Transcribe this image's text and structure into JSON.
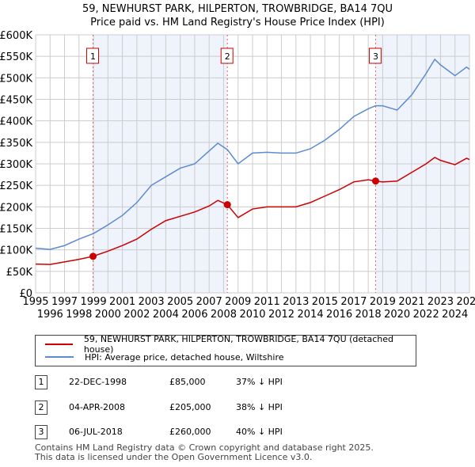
{
  "title": "59, NEWHURST PARK, HILPERTON, TROWBRIDGE, BA14 7QU",
  "subtitle": "Price paid vs. HM Land Registry's House Price Index (HPI)",
  "chart_data": {
    "type": "line",
    "xlim": [
      1995,
      2025
    ],
    "ylim": [
      0,
      600000
    ],
    "x_ticks": [
      "1995",
      "1996",
      "1997",
      "1998",
      "1999",
      "2000",
      "2001",
      "2002",
      "2003",
      "2004",
      "2005",
      "2006",
      "2007",
      "2008",
      "2009",
      "2010",
      "2011",
      "2012",
      "2013",
      "2014",
      "2015",
      "2016",
      "2017",
      "2018",
      "2019",
      "2020",
      "2021",
      "2022",
      "2023",
      "2024",
      "2025"
    ],
    "y_ticks": [
      {
        "v": 0,
        "l": "£0"
      },
      {
        "v": 50000,
        "l": "£50K"
      },
      {
        "v": 100000,
        "l": "£100K"
      },
      {
        "v": 150000,
        "l": "£150K"
      },
      {
        "v": 200000,
        "l": "£200K"
      },
      {
        "v": 250000,
        "l": "£250K"
      },
      {
        "v": 300000,
        "l": "£300K"
      },
      {
        "v": 350000,
        "l": "£350K"
      },
      {
        "v": 400000,
        "l": "£400K"
      },
      {
        "v": 450000,
        "l": "£450K"
      },
      {
        "v": 500000,
        "l": "£500K"
      },
      {
        "v": 550000,
        "l": "£550K"
      },
      {
        "v": 600000,
        "l": "£600K"
      }
    ],
    "grid": true,
    "series": [
      {
        "name": "59, NEWHURST PARK, HILPERTON, TROWBRIDGE, BA14 7QU (detached house)",
        "color": "#cc0000",
        "x": [
          1995,
          1996,
          1997,
          1998,
          1998.97,
          2000,
          2001,
          2002,
          2003,
          2004,
          2005,
          2006,
          2007,
          2007.6,
          2008.26,
          2009,
          2010,
          2011,
          2012,
          2013,
          2014,
          2015,
          2016,
          2017,
          2018,
          2018.5,
          2019,
          2020,
          2021,
          2022,
          2022.6,
          2023,
          2024,
          2024.8,
          2025
        ],
        "y": [
          67000,
          66000,
          72000,
          78000,
          85000,
          97000,
          110000,
          125000,
          148000,
          168000,
          178000,
          188000,
          202000,
          215000,
          205000,
          175000,
          195000,
          200000,
          200000,
          200000,
          210000,
          225000,
          240000,
          258000,
          263000,
          260000,
          258000,
          260000,
          280000,
          300000,
          315000,
          308000,
          298000,
          313000,
          310000
        ]
      },
      {
        "name": "HPI: Average price, detached house, Wiltshire",
        "color": "#5b8bd0",
        "x": [
          1995,
          1996,
          1997,
          1998,
          1999,
          2000,
          2001,
          2002,
          2003,
          2004,
          2005,
          2006,
          2007,
          2007.6,
          2008.26,
          2009,
          2010,
          2011,
          2012,
          2013,
          2014,
          2015,
          2016,
          2017,
          2018,
          2018.5,
          2019,
          2020,
          2021,
          2022,
          2022.6,
          2023,
          2024,
          2024.8,
          2025
        ],
        "y": [
          104000,
          101000,
          110000,
          125000,
          138000,
          158000,
          180000,
          210000,
          250000,
          270000,
          290000,
          300000,
          330000,
          348000,
          333000,
          300000,
          325000,
          327000,
          325000,
          325000,
          335000,
          355000,
          380000,
          410000,
          428000,
          435000,
          435000,
          425000,
          460000,
          510000,
          543000,
          530000,
          505000,
          525000,
          520000
        ]
      }
    ],
    "sales": [
      {
        "label": "1",
        "x": 1998.97,
        "y": 85000
      },
      {
        "label": "2",
        "x": 2008.26,
        "y": 205000
      },
      {
        "label": "3",
        "x": 2018.51,
        "y": 260000
      }
    ],
    "shaded": [
      [
        1998.97,
        2008.26
      ],
      [
        2018.51,
        2025
      ]
    ]
  },
  "legend": [
    "59, NEWHURST PARK, HILPERTON, TROWBRIDGE, BA14 7QU (detached house)",
    "HPI: Average price, detached house, Wiltshire"
  ],
  "table": [
    {
      "n": "1",
      "date": "22-DEC-1998",
      "price": "£85,000",
      "hpi": "37% ↓ HPI"
    },
    {
      "n": "2",
      "date": "04-APR-2008",
      "price": "£205,000",
      "hpi": "38% ↓ HPI"
    },
    {
      "n": "3",
      "date": "06-JUL-2018",
      "price": "£260,000",
      "hpi": "40% ↓ HPI"
    }
  ],
  "footer": [
    "Contains HM Land Registry data © Crown copyright and database right 2025.",
    "This data is licensed under the Open Government Licence v3.0."
  ]
}
